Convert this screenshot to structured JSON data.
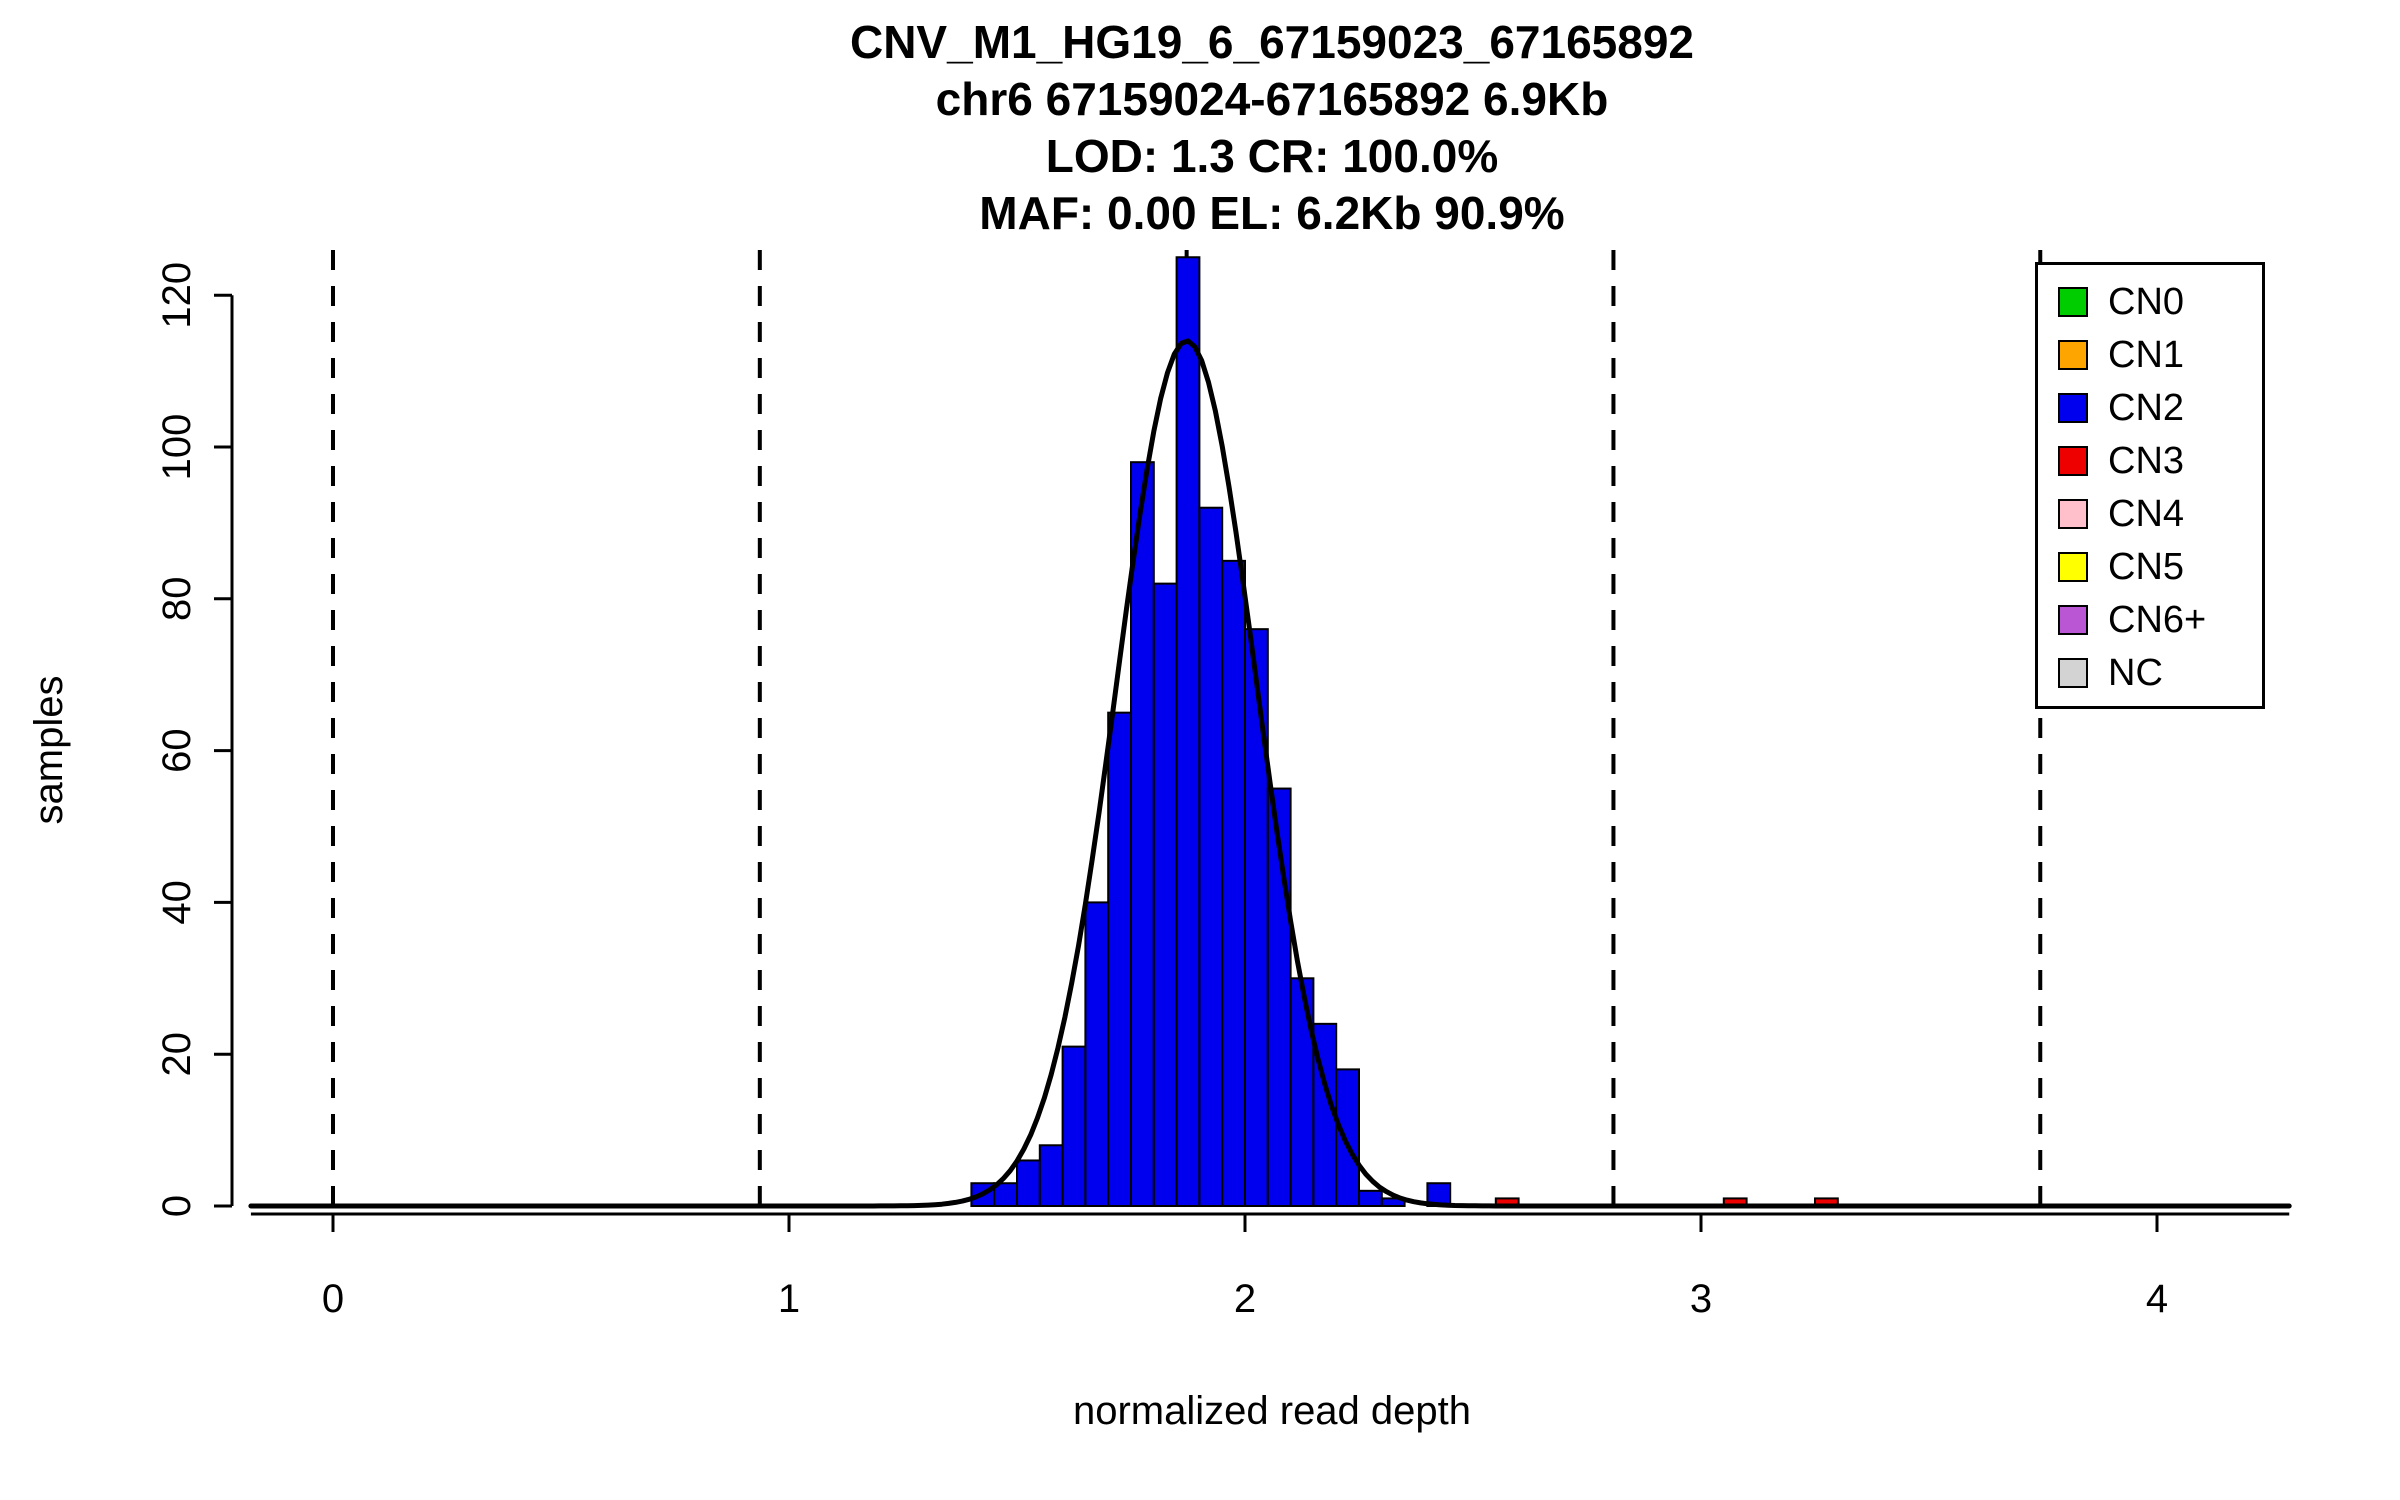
{
  "chart_data": {
    "type": "bar",
    "title": "CNV_M1_HG19_6_67159023_67165892",
    "title_lines": [
      "CNV_M1_HG19_6_67159023_67165892",
      "chr6 67159024-67165892 6.9Kb",
      "LOD: 1.3 CR: 100.0%",
      "MAF: 0.00 EL: 6.2Kb 90.9%"
    ],
    "xlabel": "normalized read depth",
    "ylabel": "samples",
    "xlim": [
      -0.18,
      4.29
    ],
    "ylim": [
      0,
      125
    ],
    "x_ticks": [
      0,
      1,
      2,
      3,
      4
    ],
    "y_ticks": [
      0,
      20,
      40,
      60,
      80,
      100,
      120
    ],
    "bin_width": 0.05,
    "histogram": [
      {
        "x": 1.4,
        "count": 3,
        "cn": "CN2"
      },
      {
        "x": 1.45,
        "count": 3,
        "cn": "CN2"
      },
      {
        "x": 1.5,
        "count": 6,
        "cn": "CN2"
      },
      {
        "x": 1.55,
        "count": 8,
        "cn": "CN2"
      },
      {
        "x": 1.6,
        "count": 21,
        "cn": "CN2"
      },
      {
        "x": 1.65,
        "count": 40,
        "cn": "CN2"
      },
      {
        "x": 1.7,
        "count": 65,
        "cn": "CN2"
      },
      {
        "x": 1.75,
        "count": 98,
        "cn": "CN2"
      },
      {
        "x": 1.8,
        "count": 82,
        "cn": "CN2"
      },
      {
        "x": 1.85,
        "count": 125,
        "cn": "CN2"
      },
      {
        "x": 1.9,
        "count": 92,
        "cn": "CN2"
      },
      {
        "x": 1.95,
        "count": 85,
        "cn": "CN2"
      },
      {
        "x": 2.0,
        "count": 76,
        "cn": "CN2"
      },
      {
        "x": 2.05,
        "count": 55,
        "cn": "CN2"
      },
      {
        "x": 2.1,
        "count": 30,
        "cn": "CN2"
      },
      {
        "x": 2.15,
        "count": 24,
        "cn": "CN2"
      },
      {
        "x": 2.2,
        "count": 18,
        "cn": "CN2"
      },
      {
        "x": 2.25,
        "count": 2,
        "cn": "CN2"
      },
      {
        "x": 2.3,
        "count": 1,
        "cn": "CN2"
      },
      {
        "x": 2.4,
        "count": 3,
        "cn": "CN2"
      },
      {
        "x": 2.55,
        "count": 1,
        "cn": "CN3"
      },
      {
        "x": 3.05,
        "count": 1,
        "cn": "CN3"
      },
      {
        "x": 3.25,
        "count": 1,
        "cn": "CN3"
      }
    ],
    "fit_curve": {
      "mean": 1.872,
      "sd": 0.153,
      "peak": 114
    },
    "dashed_guides_x": [
      0,
      0.936,
      1.872,
      2.808,
      3.744
    ],
    "legend_position": "top-right",
    "legend": [
      {
        "label": "CN0",
        "color": "#00CD00"
      },
      {
        "label": "CN1",
        "color": "#FFA500"
      },
      {
        "label": "CN2",
        "color": "#0000EE"
      },
      {
        "label": "CN3",
        "color": "#EE0000"
      },
      {
        "label": "CN4",
        "color": "#FFC0CB"
      },
      {
        "label": "CN5",
        "color": "#FFFF00"
      },
      {
        "label": "CN6+",
        "color": "#BA55D3"
      },
      {
        "label": "NC",
        "color": "#D3D3D3"
      }
    ],
    "colors": {
      "CN0": "#00CD00",
      "CN1": "#FFA500",
      "CN2": "#0000EE",
      "CN3": "#EE0000",
      "CN4": "#FFC0CB",
      "CN5": "#FFFF00",
      "CN6+": "#BA55D3",
      "NC": "#D3D3D3",
      "axis": "#000000",
      "curve": "#000000",
      "guide": "#000000"
    },
    "grid": false
  }
}
